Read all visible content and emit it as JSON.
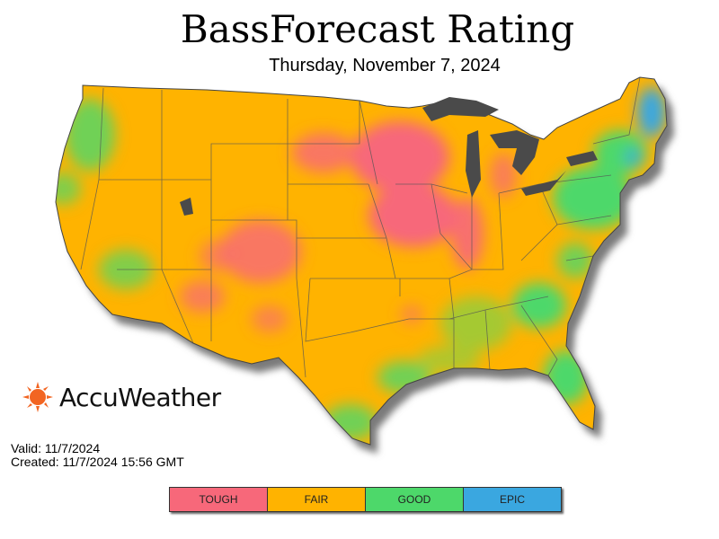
{
  "header": {
    "title": "BassForecast Rating",
    "date": "Thursday, November 7, 2024"
  },
  "logo": {
    "text": "AccuWeather",
    "icon": "sun-icon",
    "color": "#f26522"
  },
  "info": {
    "valid": "Valid: 11/7/2024",
    "created": "Created: 11/7/2024 15:56 GMT"
  },
  "legend": [
    {
      "label": "TOUGH",
      "color": "#f7687a"
    },
    {
      "label": "FAIR",
      "color": "#ffb300"
    },
    {
      "label": "GOOD",
      "color": "#4dd86a"
    },
    {
      "label": "EPIC",
      "color": "#3aa7e0"
    }
  ]
}
